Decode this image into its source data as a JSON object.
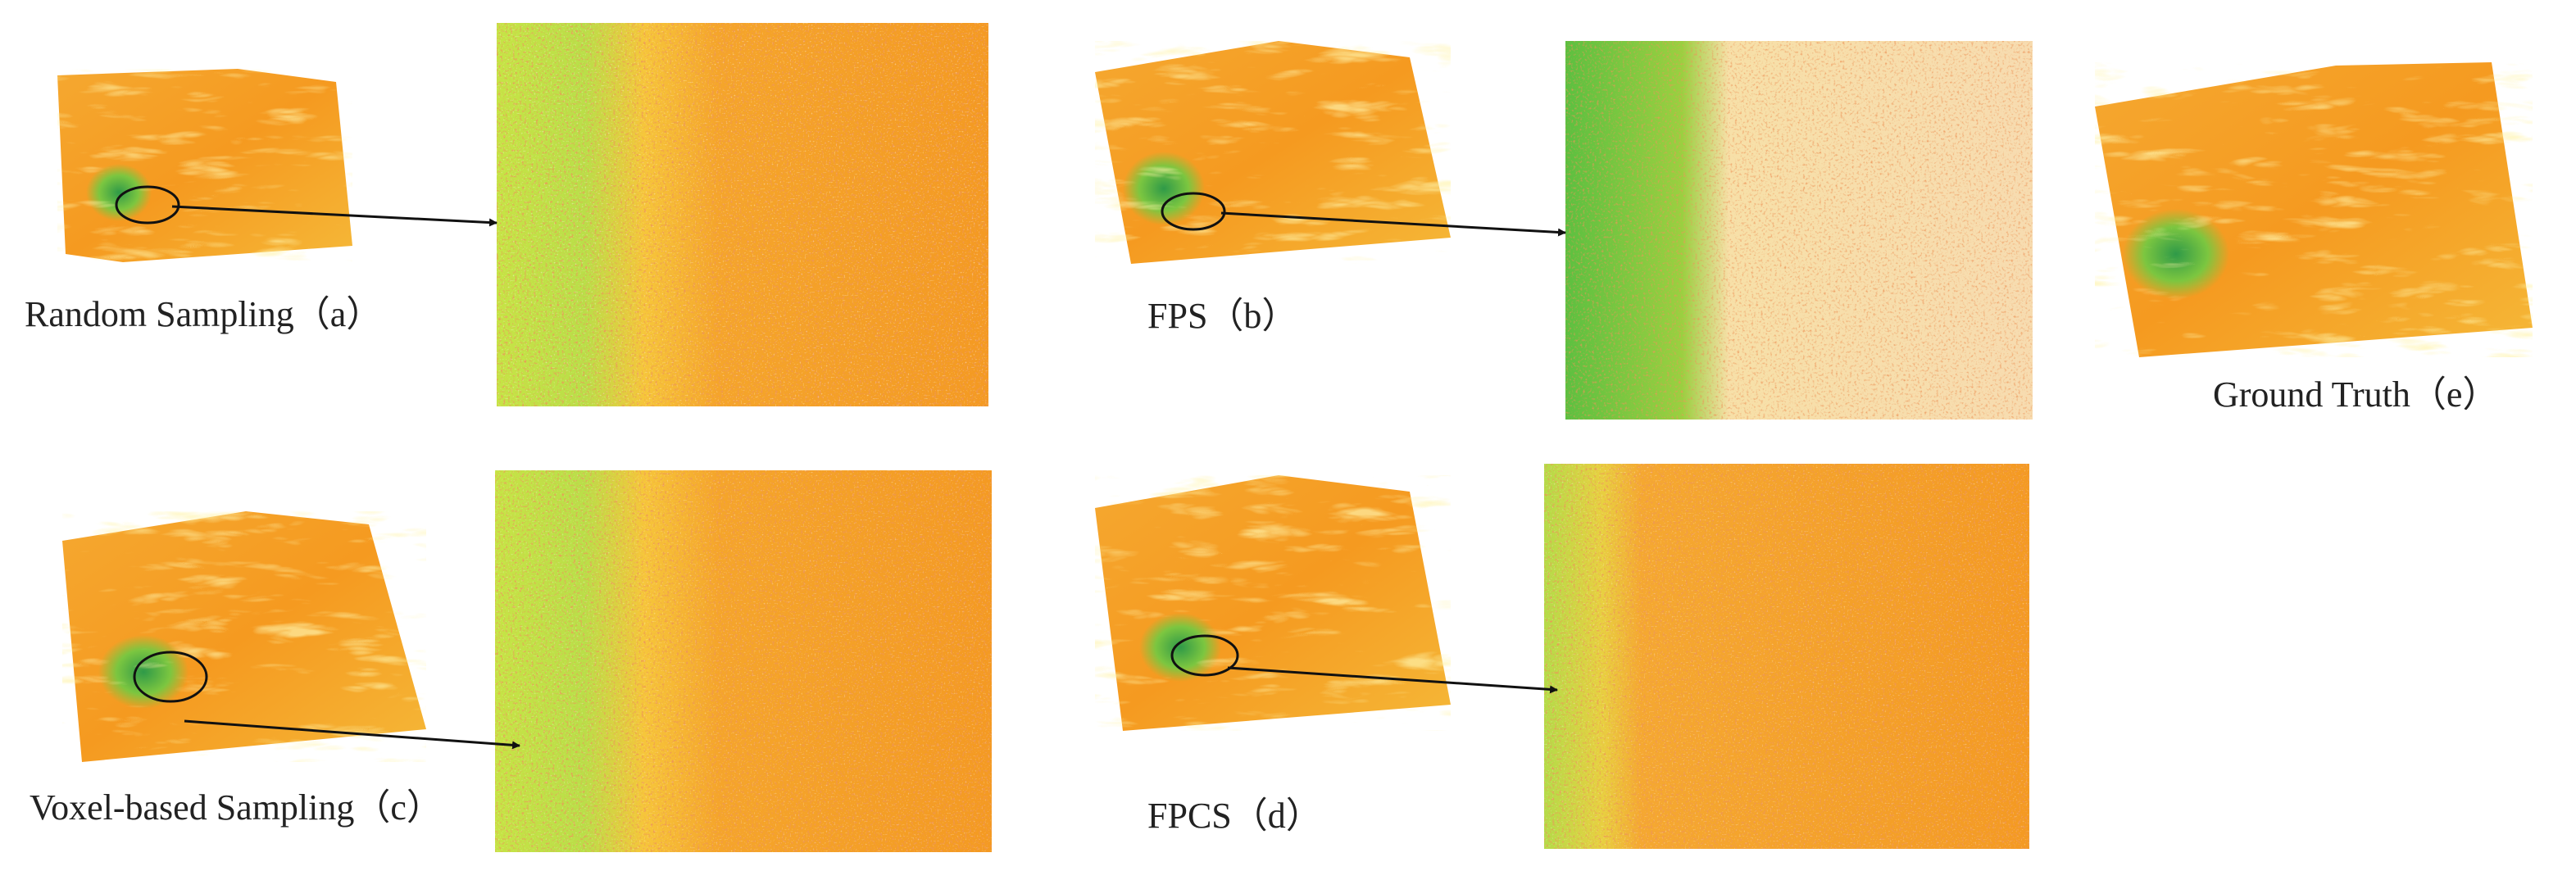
{
  "panels": [
    {
      "label": "Random Sampling（a）"
    },
    {
      "label": "FPS（b）"
    },
    {
      "label": "Voxel-based Sampling（c）"
    },
    {
      "label": "FPCS（d）"
    },
    {
      "label": "Ground Truth（e）"
    }
  ]
}
